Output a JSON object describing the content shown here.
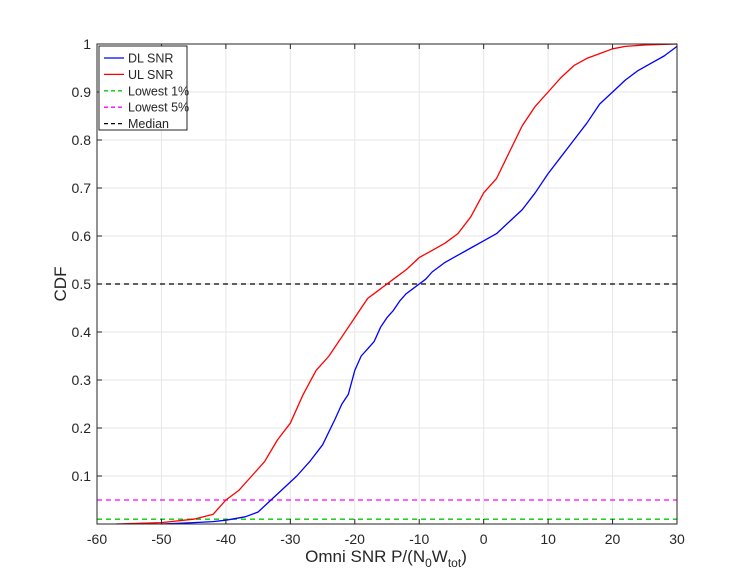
{
  "chart_data": {
    "type": "line",
    "title": "",
    "xlabel": "Omni SNR P/(N",
    "xlabel_sub1": "0",
    "xlabel_mid": "W",
    "xlabel_sub2": "tot",
    "xlabel_end": ")",
    "ylabel": "CDF",
    "xlim": [
      -60,
      30
    ],
    "ylim": [
      0,
      1
    ],
    "x_ticks": [
      -60,
      -50,
      -40,
      -30,
      -20,
      -10,
      0,
      10,
      20,
      30
    ],
    "y_ticks": [
      0.1,
      0.2,
      0.3,
      0.4,
      0.5,
      0.6,
      0.7,
      0.8,
      0.9,
      1
    ],
    "grid": true,
    "legend_position": "top-left",
    "series": [
      {
        "name": "DL SNR",
        "color": "#0000ff",
        "style": "solid",
        "x": [
          -50,
          -45,
          -42,
          -40,
          -37,
          -35,
          -33,
          -31,
          -29,
          -27,
          -25,
          -23,
          -22,
          -21,
          -20,
          -19,
          -18,
          -17,
          -16,
          -15,
          -14,
          -13,
          -12,
          -11,
          -10,
          -9,
          -8,
          -6,
          -4,
          -2,
          0,
          2,
          4,
          6,
          8,
          10,
          12,
          14,
          16,
          18,
          20,
          22,
          24,
          26,
          28,
          30
        ],
        "y": [
          0.0,
          0.003,
          0.005,
          0.008,
          0.015,
          0.025,
          0.05,
          0.075,
          0.1,
          0.13,
          0.165,
          0.22,
          0.25,
          0.27,
          0.32,
          0.35,
          0.365,
          0.38,
          0.41,
          0.43,
          0.445,
          0.465,
          0.48,
          0.49,
          0.5,
          0.51,
          0.525,
          0.545,
          0.56,
          0.575,
          0.59,
          0.605,
          0.63,
          0.655,
          0.69,
          0.73,
          0.765,
          0.8,
          0.835,
          0.875,
          0.9,
          0.925,
          0.945,
          0.96,
          0.975,
          0.995
        ]
      },
      {
        "name": "UL SNR",
        "color": "#ff0000",
        "style": "solid",
        "x": [
          -57,
          -50,
          -45,
          -42,
          -40,
          -38,
          -36,
          -34,
          -32,
          -30,
          -28,
          -26,
          -25,
          -24,
          -22,
          -20,
          -18,
          -16,
          -15,
          -14,
          -12,
          -10,
          -8,
          -6,
          -4,
          -2,
          0,
          2,
          4,
          6,
          8,
          10,
          12,
          14,
          16,
          18,
          20,
          22,
          25,
          30
        ],
        "y": [
          0.0,
          0.003,
          0.01,
          0.02,
          0.05,
          0.07,
          0.1,
          0.13,
          0.175,
          0.21,
          0.27,
          0.32,
          0.335,
          0.35,
          0.39,
          0.43,
          0.47,
          0.49,
          0.5,
          0.51,
          0.53,
          0.555,
          0.57,
          0.585,
          0.605,
          0.64,
          0.69,
          0.72,
          0.775,
          0.83,
          0.87,
          0.9,
          0.93,
          0.955,
          0.97,
          0.98,
          0.99,
          0.995,
          0.998,
          1.0
        ]
      },
      {
        "name": "Lowest 1%",
        "color": "#00cc00",
        "style": "dashed",
        "x": [
          -60,
          30
        ],
        "y": [
          0.01,
          0.01
        ]
      },
      {
        "name": "Lowest 5%",
        "color": "#ff00ff",
        "style": "dashed",
        "x": [
          -60,
          30
        ],
        "y": [
          0.05,
          0.05
        ]
      },
      {
        "name": "Median",
        "color": "#000000",
        "style": "dashed",
        "x": [
          -60,
          30
        ],
        "y": [
          0.5,
          0.5
        ]
      }
    ]
  }
}
